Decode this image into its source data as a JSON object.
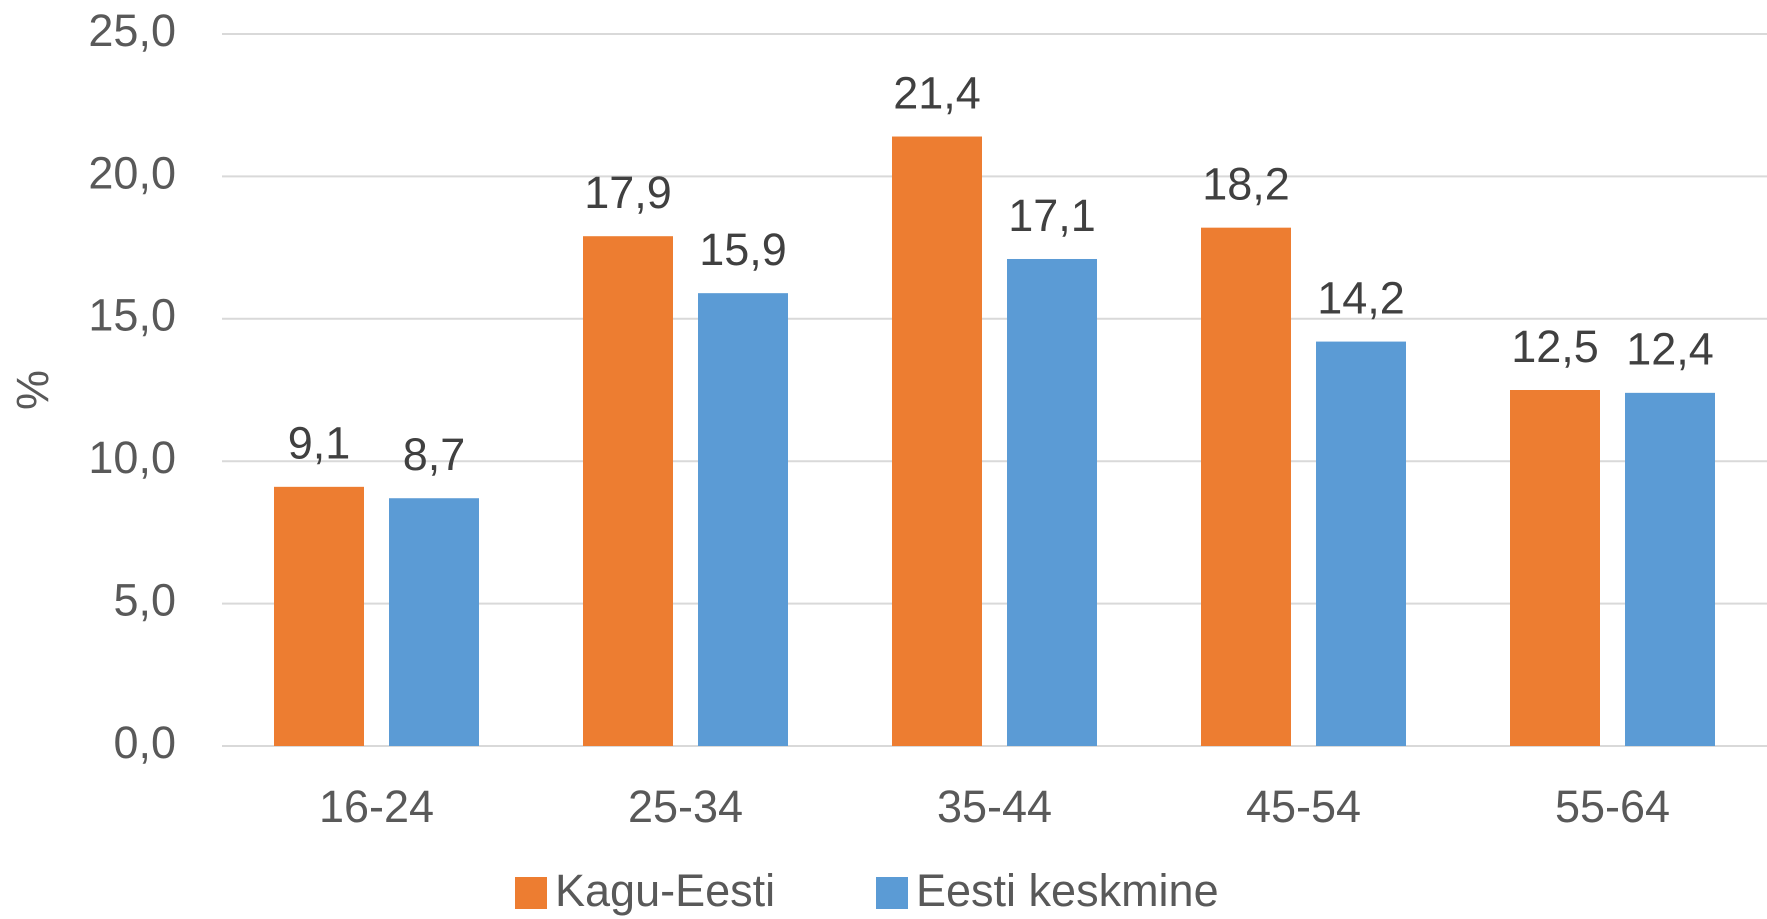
{
  "chart_data": {
    "type": "bar",
    "y_label": "%",
    "categories": [
      "16-24",
      "25-34",
      "35-44",
      "45-54",
      "55-64"
    ],
    "series": [
      {
        "name": "Kagu-Eesti",
        "color": "#ed7d31",
        "values": [
          9.1,
          17.9,
          21.4,
          18.2,
          12.5
        ],
        "value_labels": [
          "9,1",
          "17,9",
          "21,4",
          "18,2",
          "12,5"
        ]
      },
      {
        "name": "Eesti keskmine",
        "color": "#5b9bd5",
        "values": [
          8.7,
          15.9,
          17.1,
          14.2,
          12.4
        ],
        "value_labels": [
          "8,7",
          "15,9",
          "17,1",
          "14,2",
          "12,4"
        ]
      }
    ],
    "ylim": [
      0,
      25
    ],
    "yticks": [
      {
        "value": 0,
        "label": "0,0"
      },
      {
        "value": 5,
        "label": "5,0"
      },
      {
        "value": 10,
        "label": "10,0"
      },
      {
        "value": 15,
        "label": "15,0"
      },
      {
        "value": 20,
        "label": "20,0"
      },
      {
        "value": 25,
        "label": "25,0"
      }
    ],
    "grid": true,
    "legend": "bottom"
  }
}
